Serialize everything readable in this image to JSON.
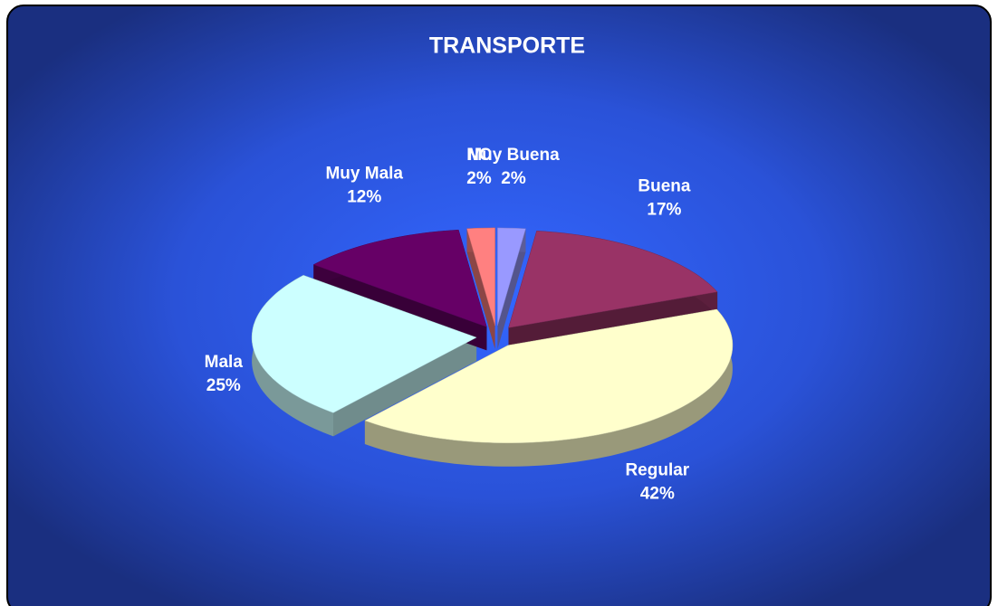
{
  "chart_data": {
    "type": "pie",
    "title": "TRANSPORTE",
    "categories": [
      "Muy Buena",
      "Buena",
      "Regular",
      "Mala",
      "Muy Mala",
      "NC"
    ],
    "values": [
      2,
      17,
      42,
      25,
      12,
      2
    ],
    "value_labels": [
      "2%",
      "17%",
      "42%",
      "25%",
      "12%",
      "2%"
    ],
    "colors": [
      "#9999ff",
      "#993366",
      "#ffffcc",
      "#ccffff",
      "#660066",
      "#ff8080"
    ]
  }
}
